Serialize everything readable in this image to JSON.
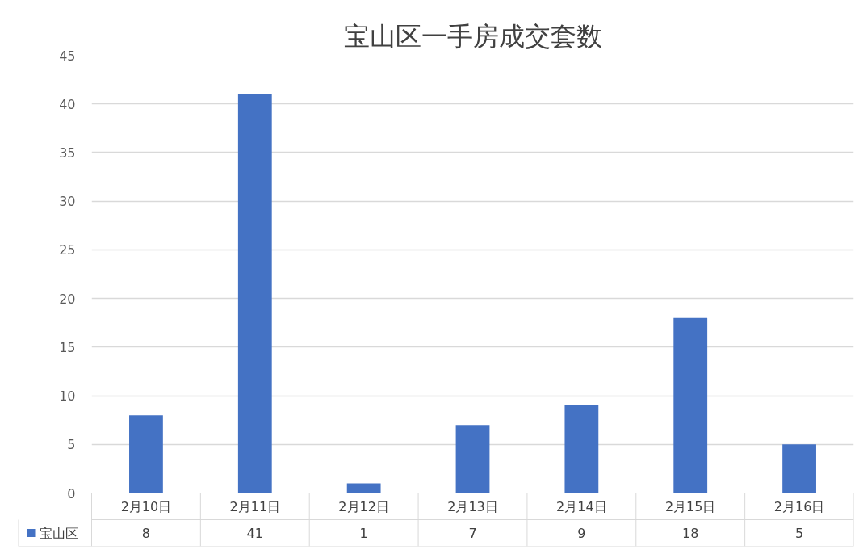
{
  "chart_data": {
    "type": "bar",
    "title": "宝山区一手房成交套数",
    "categories": [
      "2月10日",
      "2月11日",
      "2月12日",
      "2月13日",
      "2月14日",
      "2月15日",
      "2月16日"
    ],
    "series": [
      {
        "name": "宝山区",
        "color": "#4472c4",
        "values": [
          8,
          41,
          1,
          7,
          9,
          18,
          5
        ]
      }
    ],
    "ylim": [
      0,
      45
    ],
    "yticks": [
      0,
      5,
      10,
      15,
      20,
      25,
      30,
      35,
      40,
      45
    ],
    "grid": "y",
    "legend": "bottom",
    "data_labels": true
  }
}
